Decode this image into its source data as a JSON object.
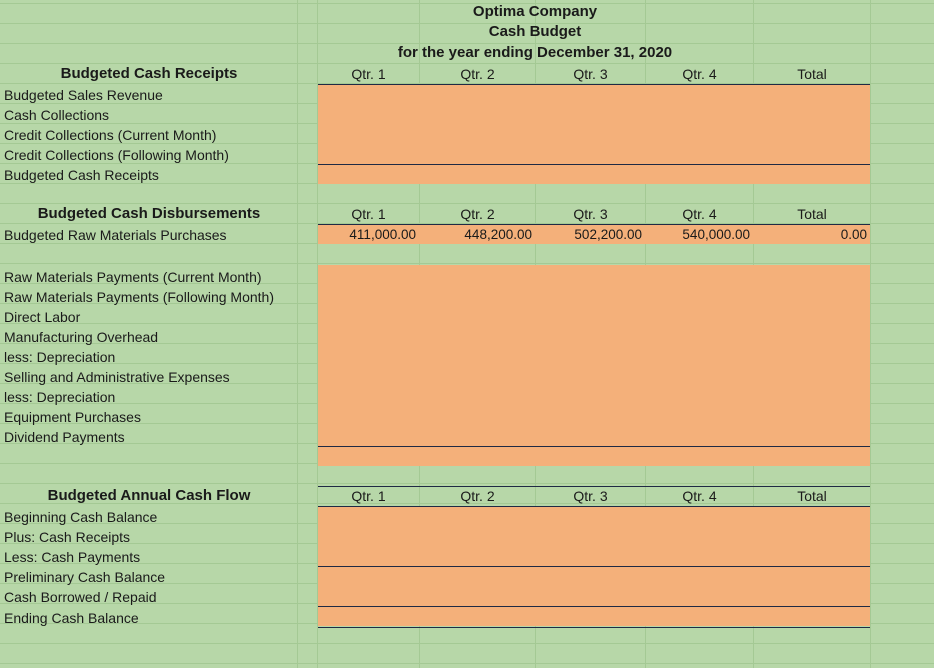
{
  "title": {
    "company": "Optima Company",
    "statement": "Cash Budget",
    "period": "for the year ending December 31, 2020"
  },
  "colors": {
    "sheet_bg": "#b7d7a8",
    "input_fill": "#f4b07a",
    "gridline": "#a4c994",
    "rule": "#1f2a44"
  },
  "receipts": {
    "heading": "Budgeted Cash Receipts",
    "columns": [
      "Qtr. 1",
      "Qtr. 2",
      "Qtr. 3",
      "Qtr. 4",
      "Total"
    ],
    "rows": [
      "Budgeted Sales Revenue",
      "Cash Collections",
      "Credit Collections (Current Month)",
      "Credit Collections (Following Month)",
      "Budgeted Cash Receipts"
    ]
  },
  "disbursements": {
    "heading": "Budgeted Cash Disbursements",
    "columns": [
      "Qtr. 1",
      "Qtr. 2",
      "Qtr. 3",
      "Qtr. 4",
      "Total"
    ],
    "purchases_label": "Budgeted Raw Materials Purchases",
    "purchases_values": [
      "411,000.00",
      "448,200.00",
      "502,200.00",
      "540,000.00",
      "0.00"
    ],
    "rows": [
      "Raw Materials Payments (Current Month)",
      "Raw Materials Payments (Following Month)",
      "Direct Labor",
      "Manufacturing Overhead",
      "less: Depreciation",
      "Selling and Administrative Expenses",
      "less: Depreciation",
      "Equipment Purchases",
      "Dividend Payments"
    ]
  },
  "cashflow": {
    "heading": "Budgeted Annual Cash Flow",
    "columns": [
      "Qtr. 1",
      "Qtr. 2",
      "Qtr. 3",
      "Qtr. 4",
      "Total"
    ],
    "rows": [
      "Beginning Cash Balance",
      "Plus: Cash Receipts",
      "Less: Cash Payments",
      "Preliminary Cash Balance",
      "Cash Borrowed / Repaid",
      "Ending Cash Balance"
    ]
  }
}
